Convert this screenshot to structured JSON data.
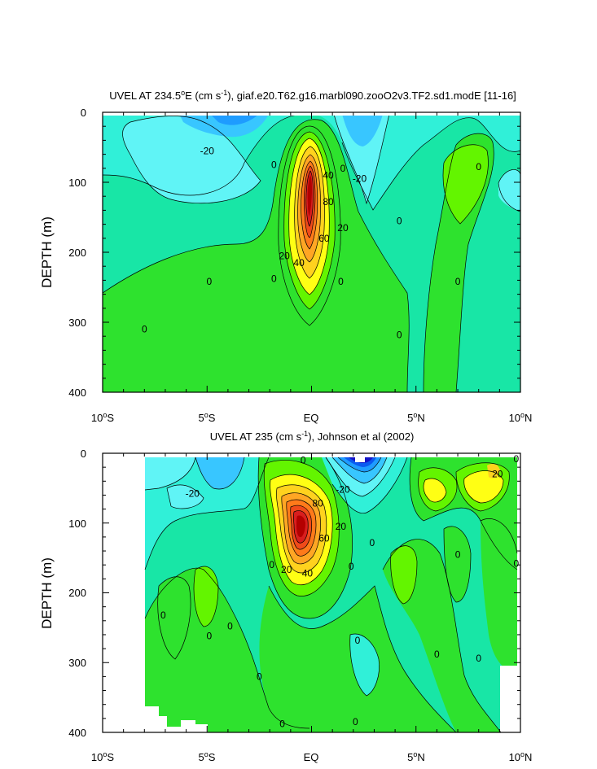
{
  "chart_data": [
    {
      "type": "contour",
      "title_parts": {
        "a": "UVEL AT 234.5",
        "sup_deg": "o",
        "b": "E (cm s",
        "sup_exp": "-1",
        "c": "), giaf.e20.T62.g16.marbl090.zooO2v3.TF2.sd1.modE [11-16]"
      },
      "ylabel": "DEPTH (m)",
      "yticks": [
        "0",
        "100",
        "200",
        "300",
        "400"
      ],
      "ylim": [
        0,
        400
      ],
      "xlim": [
        -10,
        10
      ],
      "xticks": [
        {
          "value": "10",
          "deg": "o",
          "hemi": "S"
        },
        {
          "value": "5",
          "deg": "o",
          "hemi": "S"
        },
        {
          "value": "EQ",
          "deg": "",
          "hemi": ""
        },
        {
          "value": "5",
          "deg": "o",
          "hemi": "N"
        },
        {
          "value": "10",
          "deg": "o",
          "hemi": "N"
        }
      ],
      "contour_interval": 10,
      "contour_labels": [
        {
          "text": "-20",
          "lat": -5.0,
          "depth": 55
        },
        {
          "text": "-20",
          "lat": 2.3,
          "depth": 95
        },
        {
          "text": "0",
          "lat": -1.8,
          "depth": 75
        },
        {
          "text": "0",
          "lat": 1.5,
          "depth": 80
        },
        {
          "text": "0",
          "lat": 8.0,
          "depth": 78
        },
        {
          "text": "0",
          "lat": 4.2,
          "depth": 155
        },
        {
          "text": "0",
          "lat": -4.9,
          "depth": 242
        },
        {
          "text": "0",
          "lat": -1.8,
          "depth": 238
        },
        {
          "text": "0",
          "lat": 1.4,
          "depth": 242
        },
        {
          "text": "0",
          "lat": 7.0,
          "depth": 242
        },
        {
          "text": "0",
          "lat": -8.0,
          "depth": 310
        },
        {
          "text": "0",
          "lat": 4.2,
          "depth": 318
        },
        {
          "text": "40",
          "lat": 0.8,
          "depth": 90
        },
        {
          "text": "80",
          "lat": 0.8,
          "depth": 128
        },
        {
          "text": "20",
          "lat": 1.5,
          "depth": 165
        },
        {
          "text": "60",
          "lat": 0.6,
          "depth": 180
        },
        {
          "text": "20",
          "lat": -1.3,
          "depth": 205
        },
        {
          "text": "40",
          "lat": -0.6,
          "depth": 215
        }
      ]
    },
    {
      "type": "contour",
      "title_parts": {
        "a": "UVEL AT 235 (cm s",
        "sup_exp": "-1",
        "c": "), Johnson et al (2002)"
      },
      "ylabel": "DEPTH (m)",
      "yticks": [
        "0",
        "100",
        "200",
        "300",
        "400"
      ],
      "ylim": [
        0,
        400
      ],
      "xlim": [
        -10,
        10
      ],
      "xticks": [
        {
          "value": "10",
          "deg": "o",
          "hemi": "S"
        },
        {
          "value": "5",
          "deg": "o",
          "hemi": "S"
        },
        {
          "value": "EQ",
          "deg": "",
          "hemi": ""
        },
        {
          "value": "5",
          "deg": "o",
          "hemi": "N"
        },
        {
          "value": "10",
          "deg": "o",
          "hemi": "N"
        }
      ],
      "data_lat_range": [
        -8,
        10
      ],
      "contour_interval": 10,
      "contour_labels": [
        {
          "text": "-20",
          "lat": -5.7,
          "depth": 58
        },
        {
          "text": "-20",
          "lat": 1.5,
          "depth": 52
        },
        {
          "text": "0",
          "lat": -0.4,
          "depth": 10
        },
        {
          "text": "20",
          "lat": 8.9,
          "depth": 30
        },
        {
          "text": "0",
          "lat": 9.8,
          "depth": 8
        },
        {
          "text": "80",
          "lat": 0.3,
          "depth": 72
        },
        {
          "text": "20",
          "lat": 1.4,
          "depth": 105
        },
        {
          "text": "60",
          "lat": 0.6,
          "depth": 122
        },
        {
          "text": "0",
          "lat": 2.9,
          "depth": 128
        },
        {
          "text": "0",
          "lat": -1.9,
          "depth": 160
        },
        {
          "text": "20",
          "lat": -1.2,
          "depth": 167
        },
        {
          "text": "40",
          "lat": -0.2,
          "depth": 172
        },
        {
          "text": "0",
          "lat": 1.9,
          "depth": 162
        },
        {
          "text": "0",
          "lat": 7.0,
          "depth": 145
        },
        {
          "text": "0",
          "lat": 9.8,
          "depth": 158
        },
        {
          "text": "0",
          "lat": -7.1,
          "depth": 232
        },
        {
          "text": "0",
          "lat": -4.9,
          "depth": 262
        },
        {
          "text": "0",
          "lat": -3.9,
          "depth": 248
        },
        {
          "text": "0",
          "lat": -2.5,
          "depth": 320
        },
        {
          "text": "0",
          "lat": 2.2,
          "depth": 268
        },
        {
          "text": "0",
          "lat": 6.0,
          "depth": 288
        },
        {
          "text": "0",
          "lat": 8.0,
          "depth": 294
        },
        {
          "text": "0",
          "lat": 2.1,
          "depth": 385
        },
        {
          "text": "0",
          "lat": -1.4,
          "depth": 388
        }
      ]
    }
  ]
}
